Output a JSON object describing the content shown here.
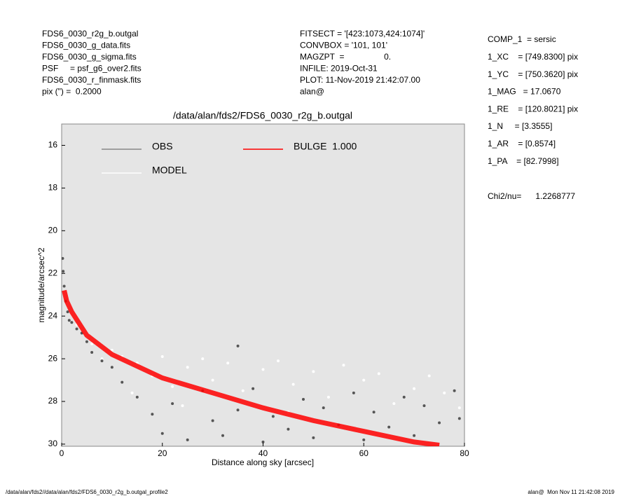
{
  "chart_data": {
    "type": "scatter",
    "title": "/data/alan/fds2/FDS6_0030_r2g_b.outgal",
    "x_label": "Distance along sky [arcsec]",
    "y_label": "magnitude/arcsec^2",
    "xlim": [
      0,
      80
    ],
    "xticks": [
      0,
      20,
      40,
      60,
      80
    ],
    "ylim": [
      30.1,
      15
    ],
    "yticks": [
      16,
      18,
      20,
      22,
      24,
      26,
      28,
      30
    ],
    "y_inverted": true,
    "background": "#e5e5e5",
    "header_left": [
      "FDS6_0030_r2g_b.outgal",
      "FDS6_0030_g_data.fits",
      "FDS6_0030_g_sigma.fits",
      "PSF     = psf_g6_over2.fits",
      "FDS6_0030_r_finmask.fits",
      "pix (\") =  0.2000"
    ],
    "header_mid": [
      "FITSECT = '[423:1073,424:1074]'",
      "CONVBOX = '101, 101'",
      "MAGZPT  =                 0.",
      "INFILE: 2019-Oct-31",
      "PLOT: 11-Nov-2019 21:42:07.00",
      "alan@"
    ],
    "header_right": [
      "COMP_1  = sersic",
      "1_XC    = [749.8300] pix",
      "1_YC    = [750.3620] pix",
      "1_MAG   = 17.0670",
      "1_RE    = [120.8021] pix",
      "1_N     = [3.3555]",
      "1_AR    = [0.8574]",
      "1_PA    = [82.7998]"
    ],
    "chi2": "Chi2/nu=      1.2268777",
    "footer_left": "/data/alan/fds2//data/alan/fds2/FDS6_0030_r2g_b.outgal_profile2",
    "footer_right": "alan@  Mon Nov 11 21:42:08 2019",
    "series": [
      {
        "name": "MODEL",
        "color": "#ffffff",
        "style": "points",
        "x": [
          3,
          6,
          8,
          10,
          12,
          15,
          18,
          20,
          22,
          25,
          28,
          30,
          33,
          36,
          40,
          43,
          46,
          50,
          53,
          56,
          60,
          63,
          66,
          70,
          73,
          76,
          79,
          14,
          24,
          45
        ],
        "values": [
          24.4,
          25.3,
          26.0,
          25.6,
          25.9,
          26.2,
          26.8,
          25.9,
          27.3,
          26.4,
          26.0,
          27.0,
          26.2,
          27.5,
          26.5,
          26.1,
          27.2,
          26.6,
          27.8,
          26.3,
          27.0,
          26.7,
          28.1,
          27.4,
          26.8,
          27.6,
          28.3,
          27.6,
          28.2,
          28.5
        ]
      },
      {
        "name": "OBS",
        "color": "#555555",
        "style": "points",
        "x": [
          0.2,
          0.3,
          0.5,
          0.8,
          1.2,
          1.5,
          2,
          3,
          4,
          5,
          6,
          8,
          10,
          12,
          15,
          18,
          20,
          22,
          25,
          28,
          30,
          32,
          35,
          38,
          40,
          42,
          45,
          48,
          50,
          52,
          55,
          58,
          60,
          62,
          65,
          68,
          70,
          72,
          75,
          78,
          79,
          35
        ],
        "values": [
          21.3,
          21.9,
          22.6,
          23.3,
          23.8,
          24.2,
          24.3,
          24.6,
          24.8,
          25.2,
          25.7,
          26.1,
          26.4,
          27.1,
          27.8,
          28.6,
          29.5,
          28.1,
          29.8,
          27.5,
          28.9,
          29.6,
          28.4,
          27.4,
          29.9,
          28.7,
          29.3,
          27.9,
          29.7,
          28.3,
          29.1,
          27.6,
          29.8,
          28.5,
          29.2,
          27.8,
          29.6,
          28.2,
          29.0,
          27.5,
          28.8,
          25.4
        ]
      },
      {
        "name": "BULGE  1.000",
        "color": "#ff0000",
        "style": "band",
        "x": [
          0.5,
          1,
          2,
          5,
          10,
          20,
          30,
          40,
          50,
          60,
          70,
          75
        ],
        "values": [
          22.8,
          23.3,
          23.8,
          24.9,
          25.8,
          26.9,
          27.6,
          28.3,
          28.9,
          29.4,
          29.9,
          30.05
        ]
      }
    ]
  }
}
